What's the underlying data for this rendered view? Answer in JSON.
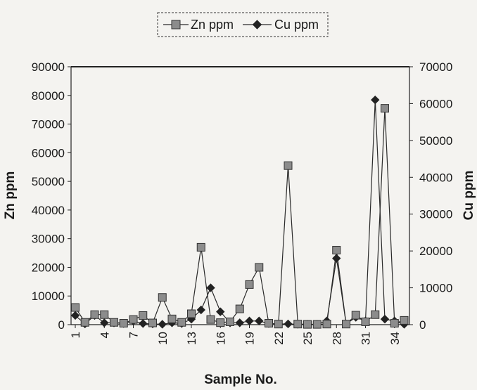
{
  "chart_data": {
    "type": "line",
    "xlabel": "Sample No.",
    "ylabel_left": "Zn ppm",
    "ylabel_right": "Cu ppm",
    "x": [
      1,
      2,
      3,
      4,
      5,
      6,
      7,
      8,
      9,
      10,
      11,
      12,
      13,
      14,
      15,
      16,
      17,
      18,
      19,
      20,
      21,
      22,
      23,
      24,
      25,
      26,
      27,
      28,
      29,
      30,
      31,
      32,
      33,
      34,
      35
    ],
    "x_tick_labels": [
      "1",
      "4",
      "7",
      "10",
      "13",
      "16",
      "19",
      "22",
      "25",
      "28",
      "31",
      "34"
    ],
    "ylim_left": [
      0,
      90000
    ],
    "yticks_left": [
      "90000",
      "80000",
      "70000",
      "60000",
      "50000",
      "40000",
      "30000",
      "20000",
      "10000",
      "0"
    ],
    "ylim_right": [
      0,
      70000
    ],
    "yticks_right": [
      "70000",
      "60000",
      "50000",
      "40000",
      "30000",
      "20000",
      "10000",
      "0"
    ],
    "legend_position": "top",
    "series": [
      {
        "name": "Zn ppm",
        "axis": "left",
        "marker": "square",
        "values": [
          6000,
          800,
          3500,
          3500,
          800,
          500,
          1800,
          3200,
          600,
          9500,
          2000,
          800,
          3800,
          27000,
          1800,
          700,
          1000,
          5500,
          14000,
          20000,
          500,
          200,
          55500,
          200,
          100,
          100,
          200,
          26000,
          200,
          3300,
          1000,
          3500,
          75500,
          500,
          1500
        ]
      },
      {
        "name": "Cu ppm",
        "axis": "right",
        "marker": "diamond",
        "values": [
          2500,
          200,
          2500,
          500,
          500,
          300,
          1000,
          300,
          200,
          100,
          500,
          300,
          1500,
          4000,
          10000,
          3500,
          500,
          500,
          1000,
          1000,
          300,
          200,
          200,
          100,
          100,
          100,
          1000,
          18000,
          200,
          2000,
          1000,
          61000,
          1500,
          1000,
          100
        ]
      }
    ],
    "colors": {
      "line": "#2a2a2a",
      "zn_marker": "#8c8c8c",
      "cu_marker": "#222222"
    }
  }
}
